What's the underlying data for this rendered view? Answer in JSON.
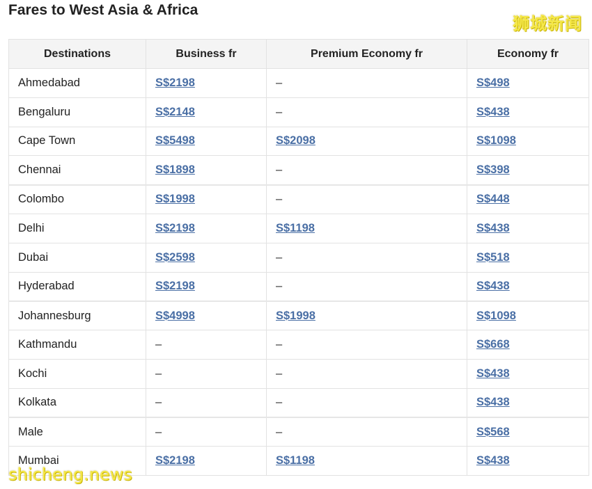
{
  "title": "Fares to West Asia & Africa",
  "watermarks": {
    "top": "狮城新闻",
    "bottom": "shicheng.news"
  },
  "headers": [
    "Destinations",
    "Business fr",
    "Premium Economy fr",
    "Economy fr"
  ],
  "link_color": "#4a6fa5",
  "rows": [
    {
      "destination": "Ahmedabad",
      "business": "S$2198",
      "premium": "–",
      "economy": "S$498"
    },
    {
      "destination": "Bengaluru",
      "business": "S$2148",
      "premium": "–",
      "economy": "S$438"
    },
    {
      "destination": "Cape Town",
      "business": "S$5498",
      "premium": "S$2098",
      "economy": "S$1098"
    },
    {
      "destination": "Chennai",
      "business": "S$1898",
      "premium": "–",
      "economy": "S$398"
    },
    {
      "destination": "Colombo",
      "business": "S$1998",
      "premium": "–",
      "economy": "S$448"
    },
    {
      "destination": "Delhi",
      "business": "S$2198",
      "premium": "S$1198",
      "economy": "S$438"
    },
    {
      "destination": "Dubai",
      "business": "S$2598",
      "premium": "–",
      "economy": "S$518"
    },
    {
      "destination": "Hyderabad",
      "business": "S$2198",
      "premium": "–",
      "economy": "S$438"
    },
    {
      "destination": "Johannesburg",
      "business": "S$4998",
      "premium": "S$1998",
      "economy": "S$1098"
    },
    {
      "destination": "Kathmandu",
      "business": "–",
      "premium": "–",
      "economy": "S$668"
    },
    {
      "destination": "Kochi",
      "business": "–",
      "premium": "–",
      "economy": "S$438"
    },
    {
      "destination": "Kolkata",
      "business": "–",
      "premium": "–",
      "economy": "S$438"
    },
    {
      "destination": "Male",
      "business": "–",
      "premium": "–",
      "economy": "S$568"
    },
    {
      "destination": "Mumbai",
      "business": "S$2198",
      "premium": "S$1198",
      "economy": "S$438"
    }
  ]
}
